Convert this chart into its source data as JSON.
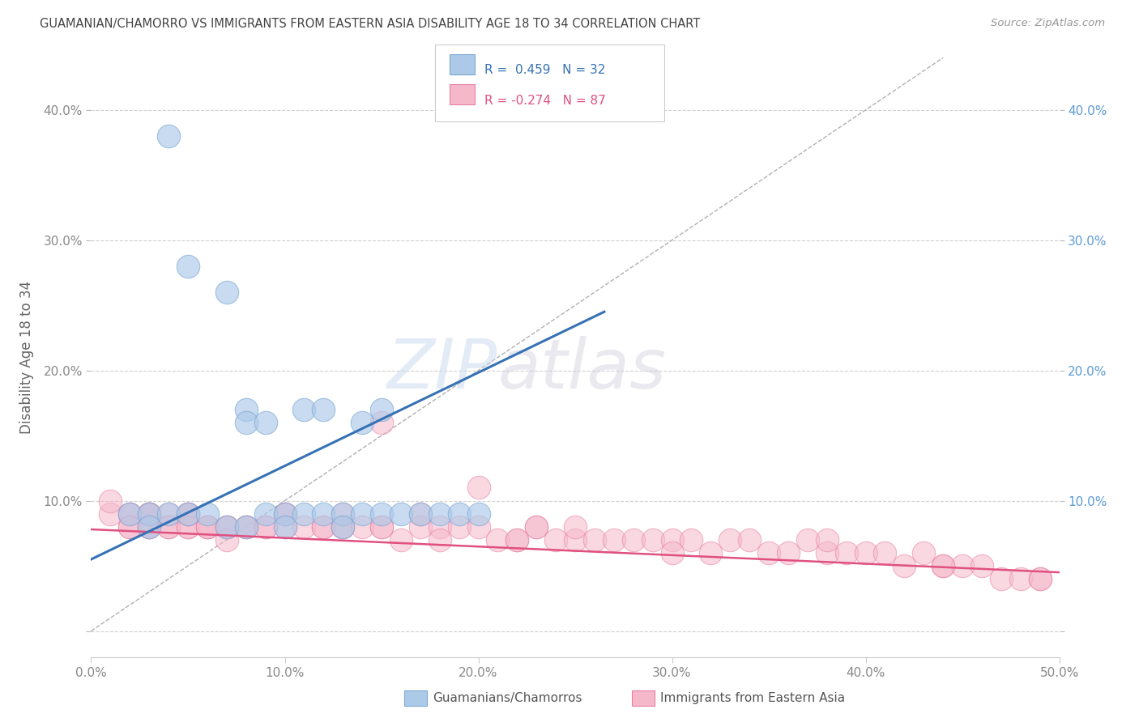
{
  "title": "GUAMANIAN/CHAMORRO VS IMMIGRANTS FROM EASTERN ASIA DISABILITY AGE 18 TO 34 CORRELATION CHART",
  "source": "Source: ZipAtlas.com",
  "ylabel": "Disability Age 18 to 34",
  "xlim": [
    0.0,
    0.5
  ],
  "ylim": [
    -0.02,
    0.44
  ],
  "xticks": [
    0.0,
    0.1,
    0.2,
    0.3,
    0.4,
    0.5
  ],
  "yticks": [
    0.0,
    0.1,
    0.2,
    0.3,
    0.4
  ],
  "xtick_labels": [
    "0.0%",
    "10.0%",
    "20.0%",
    "30.0%",
    "40.0%",
    "50.0%"
  ],
  "ytick_labels_left": [
    "",
    "10.0%",
    "20.0%",
    "30.0%",
    "40.0%"
  ],
  "ytick_labels_right": [
    "",
    "10.0%",
    "20.0%",
    "30.0%",
    "40.0%"
  ],
  "blue_R": 0.459,
  "blue_N": 32,
  "pink_R": -0.274,
  "pink_N": 87,
  "blue_scatter_x": [
    0.04,
    0.05,
    0.07,
    0.08,
    0.08,
    0.09,
    0.09,
    0.1,
    0.1,
    0.11,
    0.11,
    0.12,
    0.12,
    0.13,
    0.13,
    0.14,
    0.14,
    0.15,
    0.15,
    0.16,
    0.17,
    0.18,
    0.19,
    0.2,
    0.02,
    0.03,
    0.03,
    0.04,
    0.05,
    0.06,
    0.07,
    0.08
  ],
  "blue_scatter_y": [
    0.38,
    0.28,
    0.26,
    0.17,
    0.16,
    0.16,
    0.09,
    0.09,
    0.08,
    0.17,
    0.09,
    0.17,
    0.09,
    0.09,
    0.08,
    0.16,
    0.09,
    0.17,
    0.09,
    0.09,
    0.09,
    0.09,
    0.09,
    0.09,
    0.09,
    0.09,
    0.08,
    0.09,
    0.09,
    0.09,
    0.08,
    0.08
  ],
  "pink_scatter_x": [
    0.01,
    0.01,
    0.02,
    0.02,
    0.02,
    0.02,
    0.03,
    0.03,
    0.03,
    0.03,
    0.03,
    0.04,
    0.04,
    0.04,
    0.05,
    0.05,
    0.05,
    0.05,
    0.06,
    0.06,
    0.06,
    0.07,
    0.07,
    0.08,
    0.08,
    0.09,
    0.1,
    0.1,
    0.1,
    0.11,
    0.12,
    0.12,
    0.13,
    0.13,
    0.14,
    0.15,
    0.15,
    0.16,
    0.17,
    0.18,
    0.18,
    0.19,
    0.2,
    0.21,
    0.22,
    0.23,
    0.23,
    0.24,
    0.25,
    0.25,
    0.26,
    0.27,
    0.28,
    0.29,
    0.3,
    0.31,
    0.32,
    0.33,
    0.34,
    0.35,
    0.36,
    0.37,
    0.38,
    0.39,
    0.4,
    0.41,
    0.42,
    0.43,
    0.44,
    0.45,
    0.46,
    0.47,
    0.48,
    0.49,
    0.03,
    0.05,
    0.07,
    0.09,
    0.13,
    0.17,
    0.22,
    0.3,
    0.38,
    0.44,
    0.49,
    0.15,
    0.2
  ],
  "pink_scatter_y": [
    0.09,
    0.1,
    0.09,
    0.09,
    0.08,
    0.08,
    0.09,
    0.09,
    0.09,
    0.08,
    0.08,
    0.09,
    0.08,
    0.08,
    0.09,
    0.09,
    0.08,
    0.08,
    0.08,
    0.08,
    0.08,
    0.08,
    0.07,
    0.08,
    0.08,
    0.08,
    0.09,
    0.09,
    0.08,
    0.08,
    0.08,
    0.08,
    0.08,
    0.08,
    0.08,
    0.08,
    0.08,
    0.07,
    0.08,
    0.08,
    0.07,
    0.08,
    0.08,
    0.07,
    0.07,
    0.08,
    0.08,
    0.07,
    0.07,
    0.08,
    0.07,
    0.07,
    0.07,
    0.07,
    0.07,
    0.07,
    0.06,
    0.07,
    0.07,
    0.06,
    0.06,
    0.07,
    0.06,
    0.06,
    0.06,
    0.06,
    0.05,
    0.06,
    0.05,
    0.05,
    0.05,
    0.04,
    0.04,
    0.04,
    0.09,
    0.09,
    0.08,
    0.08,
    0.09,
    0.09,
    0.07,
    0.06,
    0.07,
    0.05,
    0.04,
    0.16,
    0.11
  ],
  "blue_line_x0": 0.0,
  "blue_line_y0": 0.055,
  "blue_line_x1": 0.265,
  "blue_line_y1": 0.245,
  "pink_line_x0": 0.0,
  "pink_line_y0": 0.078,
  "pink_line_x1": 0.5,
  "pink_line_y1": 0.045,
  "watermark_zip": "ZIP",
  "watermark_atlas": "atlas",
  "background_color": "#ffffff",
  "grid_color": "#d0d0d0",
  "title_color": "#444444",
  "axis_label_color": "#666666",
  "left_tick_color": "#888888",
  "right_tick_color": "#5b9bd5"
}
